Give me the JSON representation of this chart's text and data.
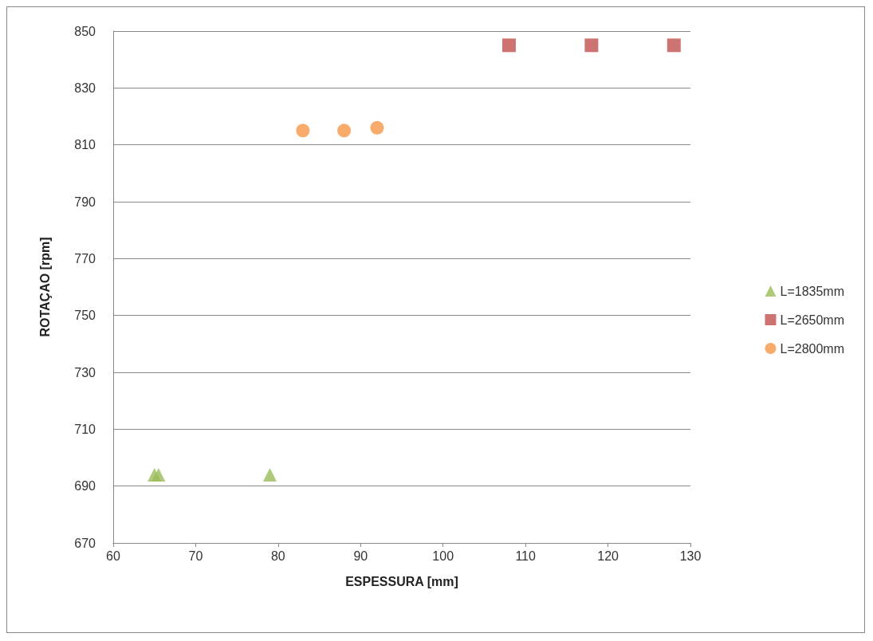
{
  "chart_data": {
    "type": "scatter",
    "xlabel": "ESPESSURA [mm]",
    "ylabel": "ROTAÇAO [rpm]",
    "xlim": [
      60,
      130
    ],
    "xticks": [
      60,
      70,
      80,
      90,
      100,
      110,
      120,
      130
    ],
    "ylim": [
      670,
      850
    ],
    "yticks": [
      670,
      690,
      710,
      730,
      750,
      770,
      790,
      810,
      830,
      850
    ],
    "grid": "y",
    "legend": "right",
    "series": [
      {
        "name": "L=1835mm",
        "color": "#9bbb59",
        "marker": "triangle",
        "x": [
          65,
          65.5,
          79
        ],
        "values": [
          694,
          694,
          694
        ]
      },
      {
        "name": "L=2650mm",
        "color": "#c0504d",
        "marker": "square",
        "x": [
          108,
          118,
          128
        ],
        "values": [
          845,
          845,
          845
        ]
      },
      {
        "name": "L=2800mm",
        "color": "#f79646",
        "marker": "circle",
        "x": [
          83,
          88,
          92
        ],
        "values": [
          815,
          815,
          816
        ]
      }
    ]
  }
}
